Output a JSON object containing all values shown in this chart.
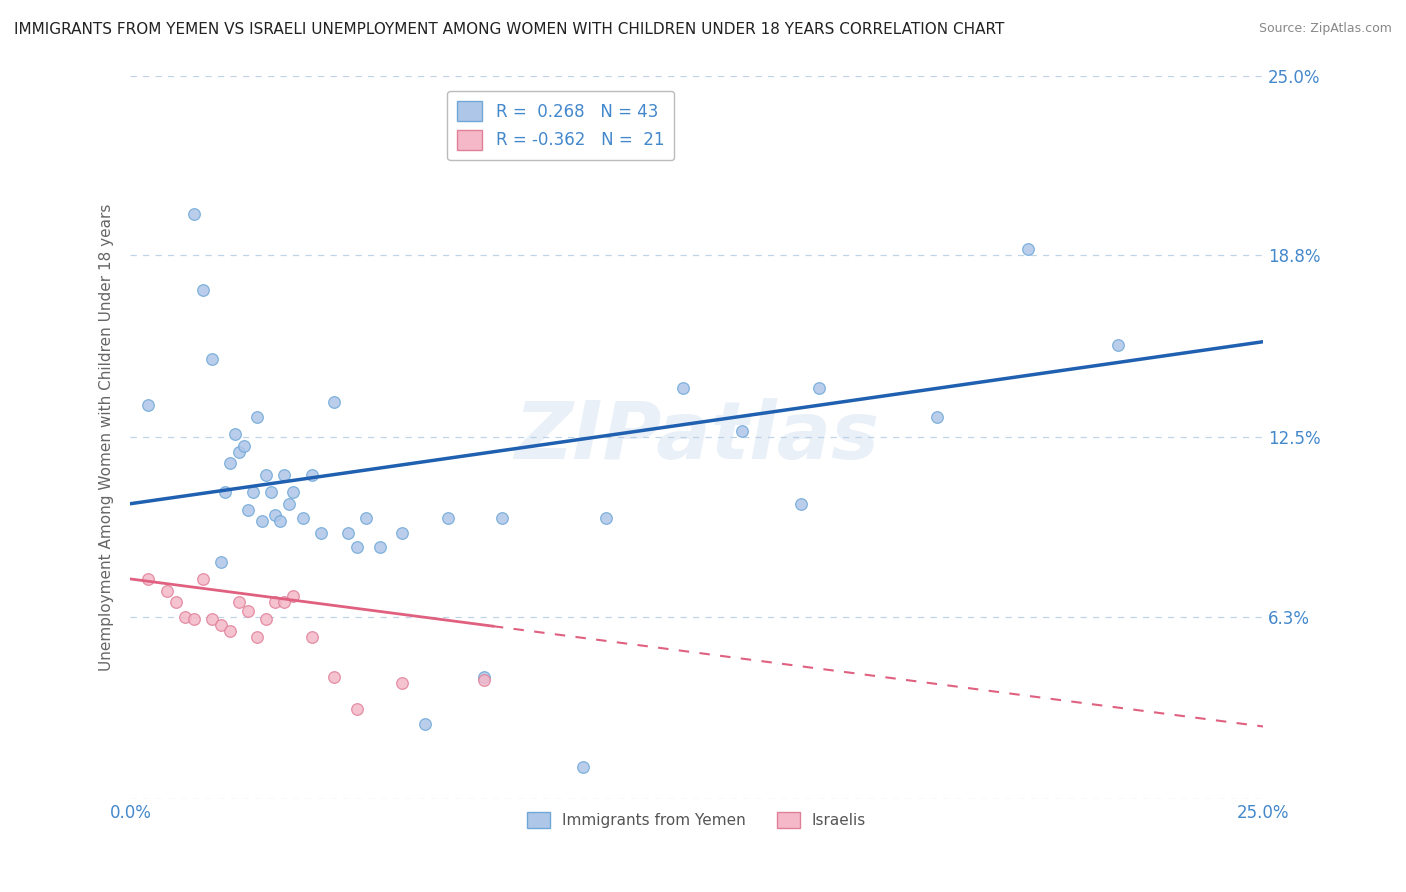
{
  "title": "IMMIGRANTS FROM YEMEN VS ISRAELI UNEMPLOYMENT AMONG WOMEN WITH CHILDREN UNDER 18 YEARS CORRELATION CHART",
  "source": "Source: ZipAtlas.com",
  "ylabel": "Unemployment Among Women with Children Under 18 years",
  "xmin": 0.0,
  "xmax": 0.25,
  "ymin": 0.0,
  "ymax": 0.25,
  "yticks": [
    0.0,
    0.063,
    0.125,
    0.188,
    0.25
  ],
  "ytick_labels_right": [
    "",
    "6.3%",
    "12.5%",
    "18.8%",
    "25.0%"
  ],
  "xticks": [
    0.0,
    0.05,
    0.1,
    0.15,
    0.2,
    0.25
  ],
  "xtick_labels": [
    "0.0%",
    "",
    "",
    "",
    "",
    "25.0%"
  ],
  "series1_color": "#aec6e8",
  "series1_edge": "#6fa8d8",
  "series2_color": "#f4b8c8",
  "series2_edge": "#e08098",
  "trend1_color": "#2060b0",
  "trend2_color": "#e06080",
  "tick_label_color": "#4488cc",
  "R1": 0.268,
  "N1": 43,
  "R2": -0.362,
  "N2": 21,
  "legend1": "Immigrants from Yemen",
  "legend2": "Israelis",
  "watermark": "ZIPatlas",
  "background_color": "#ffffff",
  "grid_color": "#c0d4e8",
  "trend1_x0": 0.0,
  "trend1_y0": 0.102,
  "trend1_x1": 0.25,
  "trend1_y1": 0.158,
  "trend2_x0": 0.0,
  "trend2_y0": 0.076,
  "trend2_x1": 0.25,
  "trend2_y1": 0.025,
  "trend2_solid_end": 0.08,
  "series1_x": [
    0.004,
    0.014,
    0.016,
    0.018,
    0.02,
    0.021,
    0.022,
    0.023,
    0.024,
    0.025,
    0.026,
    0.027,
    0.028,
    0.029,
    0.03,
    0.031,
    0.032,
    0.033,
    0.034,
    0.035,
    0.036,
    0.038,
    0.04,
    0.042,
    0.045,
    0.048,
    0.05,
    0.052,
    0.055,
    0.06,
    0.065,
    0.07,
    0.078,
    0.082,
    0.1,
    0.105,
    0.122,
    0.135,
    0.148,
    0.152,
    0.178,
    0.198,
    0.218
  ],
  "series1_y": [
    0.136,
    0.202,
    0.176,
    0.152,
    0.082,
    0.106,
    0.116,
    0.126,
    0.12,
    0.122,
    0.1,
    0.106,
    0.132,
    0.096,
    0.112,
    0.106,
    0.098,
    0.096,
    0.112,
    0.102,
    0.106,
    0.097,
    0.112,
    0.092,
    0.137,
    0.092,
    0.087,
    0.097,
    0.087,
    0.092,
    0.026,
    0.097,
    0.042,
    0.097,
    0.011,
    0.097,
    0.142,
    0.127,
    0.102,
    0.142,
    0.132,
    0.19,
    0.157
  ],
  "series2_x": [
    0.004,
    0.008,
    0.01,
    0.012,
    0.014,
    0.016,
    0.018,
    0.02,
    0.022,
    0.024,
    0.026,
    0.028,
    0.03,
    0.032,
    0.034,
    0.036,
    0.04,
    0.045,
    0.05,
    0.06,
    0.078
  ],
  "series2_y": [
    0.076,
    0.072,
    0.068,
    0.063,
    0.062,
    0.076,
    0.062,
    0.06,
    0.058,
    0.068,
    0.065,
    0.056,
    0.062,
    0.068,
    0.068,
    0.07,
    0.056,
    0.042,
    0.031,
    0.04,
    0.041
  ]
}
